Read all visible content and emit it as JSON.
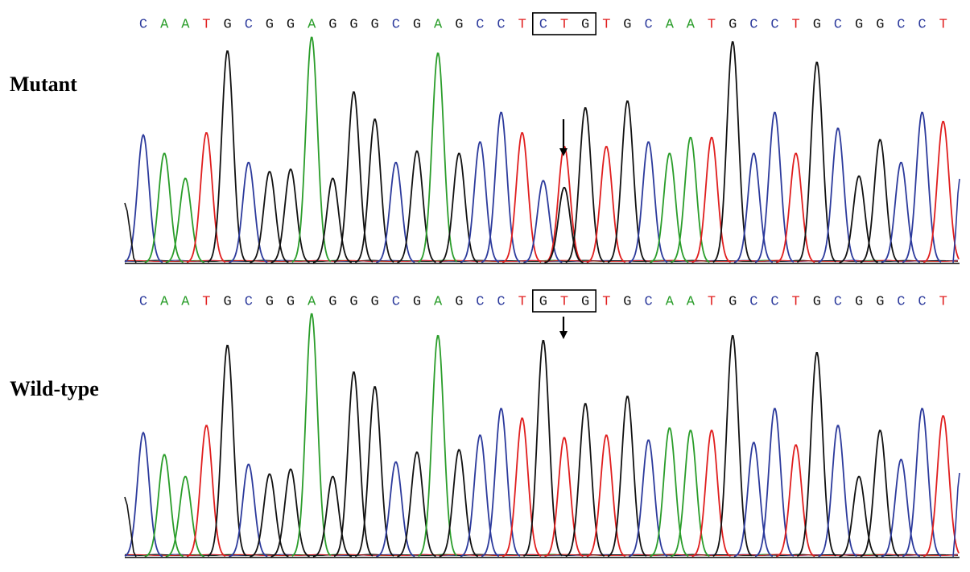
{
  "colors": {
    "A": "#2a9d2a",
    "C": "#2c3a9c",
    "G": "#111111",
    "T": "#e01e1e",
    "box": "#000000",
    "arrow": "#000000",
    "baseline": "#000000"
  },
  "chart_data": [
    {
      "type": "line",
      "panel": "mutant",
      "label": "Mutant",
      "sequence": "CAATGCGGAGGGCGAGCCTCTGTGCAATGCCTGCGGCCT",
      "boxed_codon": {
        "start_index": 19,
        "length": 3,
        "text": "CTG"
      },
      "arrow_base_index": 20,
      "peak_heights": [
        0.56,
        0.48,
        0.37,
        0.57,
        0.93,
        0.44,
        0.4,
        0.41,
        0.99,
        0.37,
        0.75,
        0.63,
        0.44,
        0.49,
        0.92,
        0.48,
        0.53,
        0.66,
        0.57,
        0.36,
        0.51,
        0.68,
        0.51,
        0.71,
        0.53,
        0.48,
        0.55,
        0.55,
        0.97,
        0.48,
        0.66,
        0.48,
        0.88,
        0.59,
        0.38,
        0.54,
        0.44,
        0.66,
        0.62
      ],
      "secondary_peaks": [
        {
          "base_index": 20,
          "base": "G",
          "height": 0.33
        }
      ]
    },
    {
      "type": "line",
      "panel": "wild-type",
      "label": "Wild-type",
      "sequence": "CAATGCGGAGGGCGAGCCTGTGTGCAATGCCTGCGGCCT",
      "boxed_codon": {
        "start_index": 19,
        "length": 3,
        "text": "GTG"
      },
      "arrow_base_index": 20,
      "peak_heights": [
        0.51,
        0.42,
        0.33,
        0.54,
        0.87,
        0.38,
        0.34,
        0.36,
        1.0,
        0.33,
        0.76,
        0.7,
        0.39,
        0.43,
        0.91,
        0.44,
        0.5,
        0.61,
        0.57,
        0.89,
        0.49,
        0.63,
        0.5,
        0.66,
        0.48,
        0.53,
        0.52,
        0.52,
        0.91,
        0.47,
        0.61,
        0.46,
        0.84,
        0.54,
        0.33,
        0.52,
        0.4,
        0.61,
        0.58
      ]
    }
  ]
}
